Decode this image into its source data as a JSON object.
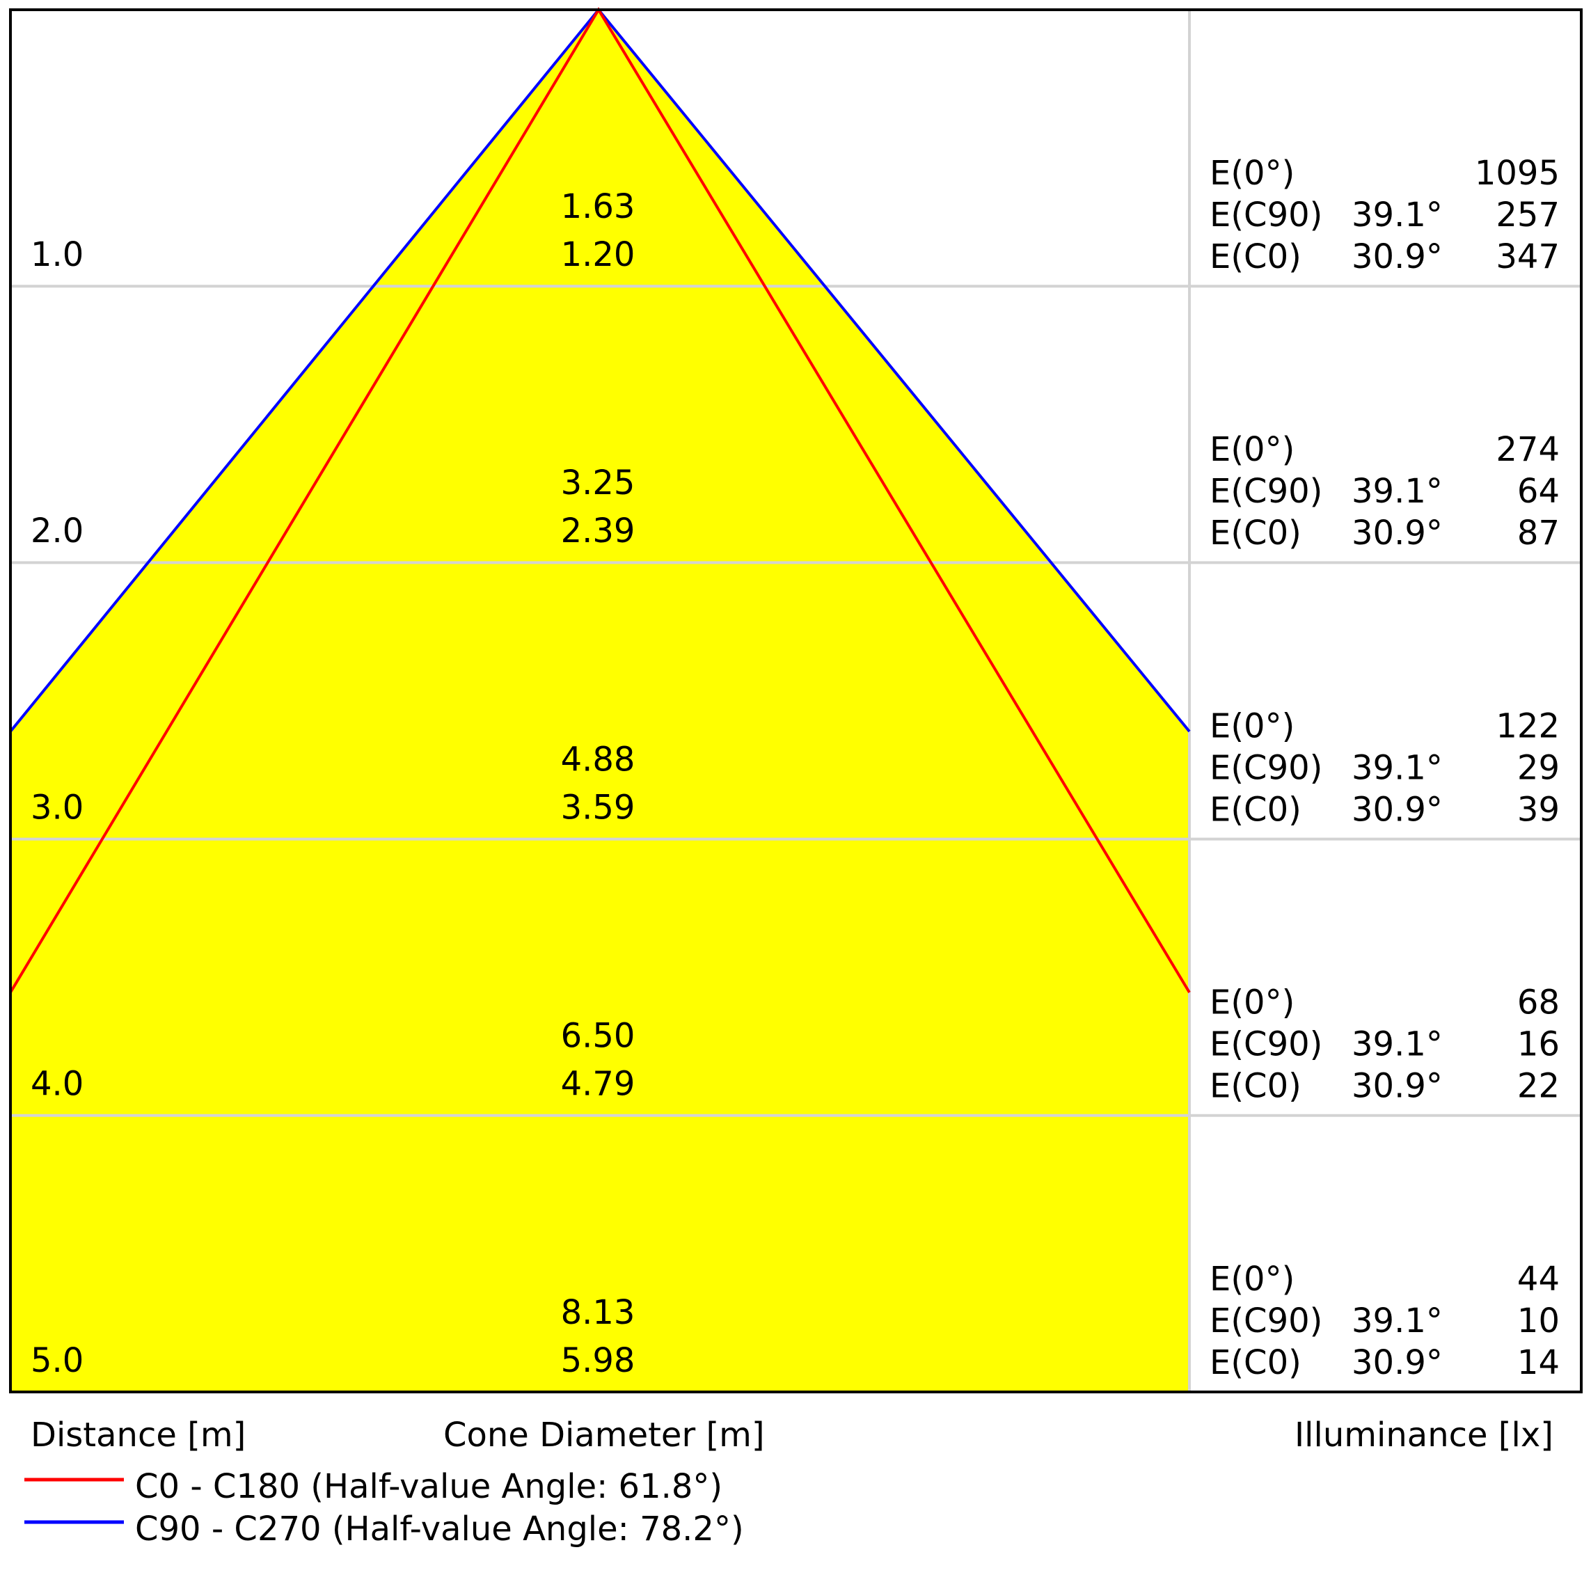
{
  "chart_data": {
    "type": "cone-diagram",
    "distance_label": "Distance [m]",
    "cone_label": "Cone Diameter [m]",
    "illuminance_label": "Illuminance [lx]",
    "distances": [
      "1.0",
      "2.0",
      "3.0",
      "4.0",
      "5.0"
    ],
    "cone_c90": [
      "1.63",
      "3.25",
      "4.88",
      "6.50",
      "8.13"
    ],
    "cone_c0": [
      "1.20",
      "2.39",
      "3.59",
      "4.79",
      "5.98"
    ],
    "illuminance_labels": [
      "E(0°)",
      "E(C90)",
      "E(C0)"
    ],
    "angle_c90": "39.1°",
    "angle_c0": "30.9°",
    "e0": [
      "1095",
      "274",
      "122",
      "68",
      "44"
    ],
    "ec90": [
      "257",
      "64",
      "29",
      "16",
      "10"
    ],
    "ec0": [
      "347",
      "87",
      "39",
      "22",
      "14"
    ],
    "series": [
      {
        "name": "C0 - C180 (Half-value Angle: 61.8°)",
        "half_value_angle": 61.8,
        "color": "#ff0000"
      },
      {
        "name": "C90 - C270 (Half-value Angle: 78.2°)",
        "half_value_angle": 78.2,
        "color": "#0000ff"
      }
    ],
    "fill_color": "#ffff00",
    "grid_color": "#d3d3d3"
  }
}
